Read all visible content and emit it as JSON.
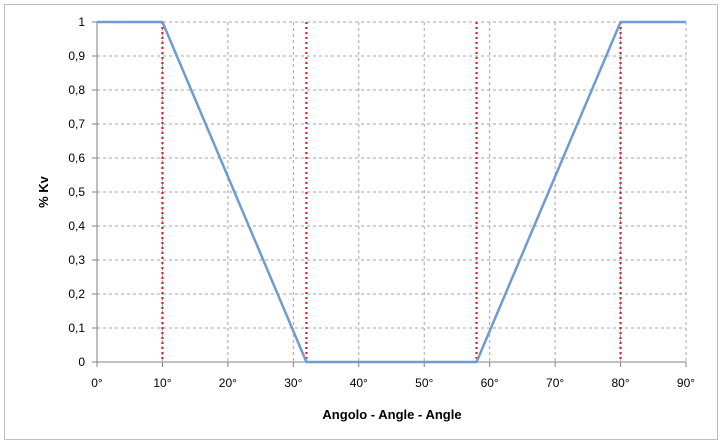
{
  "chart_data": {
    "type": "line",
    "xlabel": "Angolo - Angle - Angle",
    "ylabel": "% Kv",
    "xlim": [
      0,
      90
    ],
    "ylim": [
      0,
      1
    ],
    "x_ticks": [
      "0°",
      "10°",
      "20°",
      "30°",
      "40°",
      "50°",
      "60°",
      "70°",
      "80°",
      "90°"
    ],
    "y_ticks": [
      "0",
      "0,1",
      "0,2",
      "0,3",
      "0,4",
      "0,5",
      "0,6",
      "0,7",
      "0,8",
      "0,9",
      "1"
    ],
    "grid": true,
    "series": [
      {
        "color": "#6f9bd1",
        "x": [
          0,
          10,
          32,
          58,
          80,
          90
        ],
        "y": [
          1,
          1,
          0,
          0,
          1,
          1
        ]
      }
    ],
    "reference_lines": {
      "color": "#e01e2a",
      "style": "dotted",
      "x": [
        10,
        32,
        58,
        80
      ]
    }
  }
}
